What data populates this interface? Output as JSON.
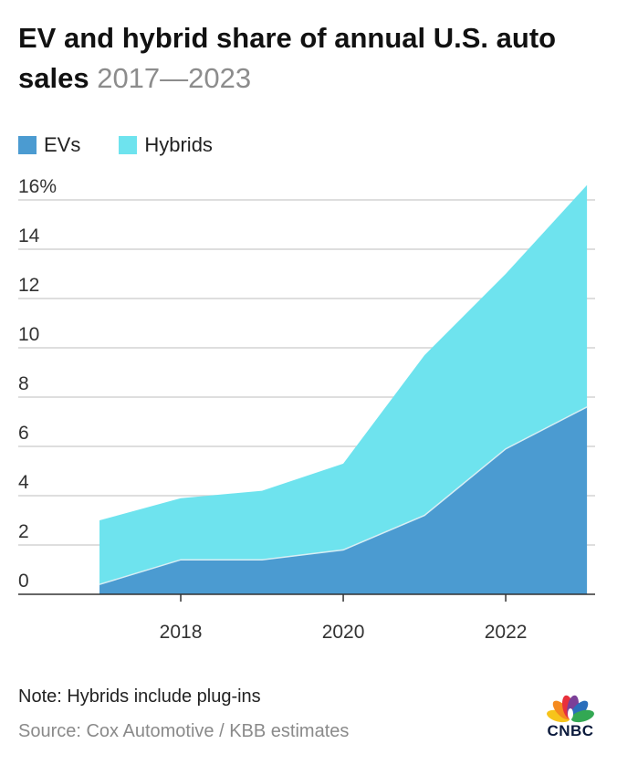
{
  "title": {
    "main": "EV and hybrid share of annual U.S. auto sales",
    "range": "2017—2023"
  },
  "legend": [
    {
      "label": "EVs",
      "color": "#4b9bd1"
    },
    {
      "label": "Hybrids",
      "color": "#6ee3ee"
    }
  ],
  "chart_data": {
    "type": "area",
    "stacked": true,
    "x": [
      2017,
      2018,
      2019,
      2020,
      2021,
      2022,
      2023
    ],
    "series": [
      {
        "name": "EVs",
        "color": "#4b9bd1",
        "values": [
          0.4,
          1.4,
          1.4,
          1.8,
          3.2,
          5.9,
          7.6
        ]
      },
      {
        "name": "Hybrids",
        "color": "#6ee3ee",
        "values": [
          2.6,
          2.5,
          2.8,
          3.5,
          6.5,
          7.1,
          9.0
        ]
      }
    ],
    "xlim": [
      2016,
      2023.1
    ],
    "ylim": [
      0,
      16
    ],
    "y_ticks": [
      {
        "value": 16,
        "label": "16%"
      },
      {
        "value": 14,
        "label": "14"
      },
      {
        "value": 12,
        "label": "12"
      },
      {
        "value": 10,
        "label": "10"
      },
      {
        "value": 8,
        "label": "8"
      },
      {
        "value": 6,
        "label": "6"
      },
      {
        "value": 4,
        "label": "4"
      },
      {
        "value": 2,
        "label": "2"
      },
      {
        "value": 0,
        "label": "0"
      }
    ],
    "x_ticks": [
      {
        "value": 2018,
        "label": "2018"
      },
      {
        "value": 2020,
        "label": "2020"
      },
      {
        "value": 2022,
        "label": "2022"
      }
    ],
    "grid": true,
    "legend_position": "top-left"
  },
  "footer": {
    "note": "Note: Hybrids include plug-ins",
    "source": "Source: Cox Automotive / KBB estimates"
  },
  "logo": {
    "text": "CNBC",
    "name": "cnbc-peacock-logo"
  }
}
